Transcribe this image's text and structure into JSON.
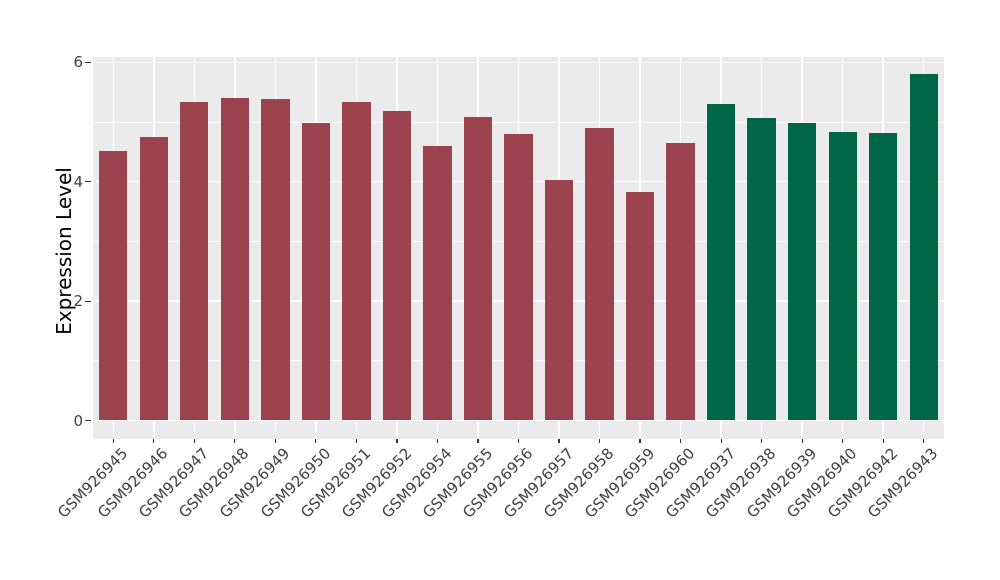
{
  "figure": {
    "background": "#ffffff",
    "panel_bg": "#EBEBEB",
    "grid_color": "#ffffff",
    "tick_color": "#333333",
    "axis_text_color": "#404040",
    "axis_title_color": "#000000"
  },
  "chart_data": {
    "type": "bar",
    "title": "",
    "xlabel": "",
    "ylabel": "Expression Level",
    "ylim": [
      0,
      6.1
    ],
    "yticks": [
      0,
      2,
      4,
      6
    ],
    "minor_yticks": [
      1,
      3,
      5
    ],
    "grid": "white major+minor horizontal lines and vertical major line at each category, on grey panel",
    "legend_position": "none",
    "categories": [
      "GSM926945",
      "GSM926946",
      "GSM926947",
      "GSM926948",
      "GSM926949",
      "GSM926950",
      "GSM926951",
      "GSM926952",
      "GSM926954",
      "GSM926955",
      "GSM926956",
      "GSM926957",
      "GSM926958",
      "GSM926959",
      "GSM926960",
      "GSM926937",
      "GSM926938",
      "GSM926939",
      "GSM926940",
      "GSM926942",
      "GSM926943"
    ],
    "values": [
      4.52,
      4.75,
      5.34,
      5.41,
      5.39,
      4.98,
      5.34,
      5.19,
      4.59,
      5.08,
      4.8,
      4.03,
      4.9,
      3.82,
      4.64,
      5.3,
      5.07,
      4.98,
      4.84,
      4.82,
      5.8
    ],
    "groups": [
      "group1",
      "group1",
      "group1",
      "group1",
      "group1",
      "group1",
      "group1",
      "group1",
      "group1",
      "group1",
      "group1",
      "group1",
      "group1",
      "group1",
      "group1",
      "group2",
      "group2",
      "group2",
      "group2",
      "group2",
      "group2"
    ],
    "group_colors": {
      "group1": "#9A434F",
      "group2": "#006648"
    }
  }
}
